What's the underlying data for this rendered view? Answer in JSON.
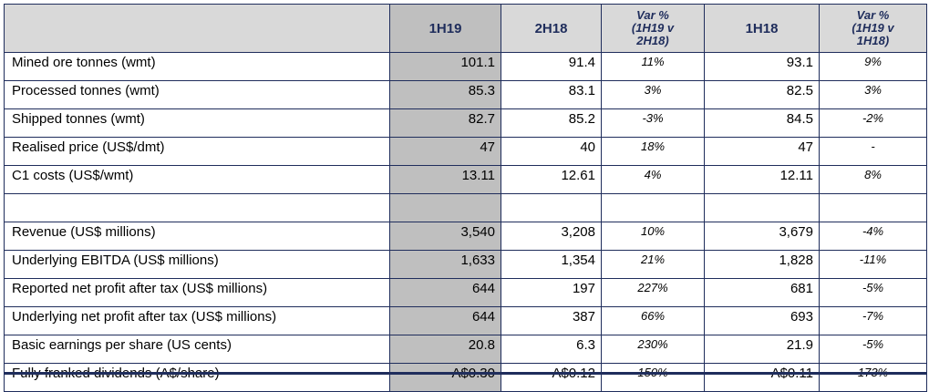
{
  "header": {
    "col1": "1H19",
    "col2": "2H18",
    "col3_line1": "Var %",
    "col3_line2": "(1H19 v",
    "col3_line3": "2H18)",
    "col4": "1H18",
    "col5_line1": "Var %",
    "col5_line2": "(1H19 v",
    "col5_line3": "1H18)"
  },
  "rows": [
    {
      "label": "Mined ore tonnes (wmt)",
      "h1_19": "101.1",
      "h2_18": "91.4",
      "var_2h18": "11%",
      "h1_18": "93.1",
      "var_1h18": "9%"
    },
    {
      "label": "Processed tonnes (wmt)",
      "h1_19": "85.3",
      "h2_18": "83.1",
      "var_2h18": "3%",
      "h1_18": "82.5",
      "var_1h18": "3%"
    },
    {
      "label": "Shipped tonnes (wmt)",
      "h1_19": "82.7",
      "h2_18": "85.2",
      "var_2h18": "-3%",
      "h1_18": "84.5",
      "var_1h18": "-2%"
    },
    {
      "label": "Realised price (US$/dmt)",
      "h1_19": "47",
      "h2_18": "40",
      "var_2h18": "18%",
      "h1_18": "47",
      "var_1h18": "-"
    },
    {
      "label": "C1 costs (US$/wmt)",
      "h1_19": "13.11",
      "h2_18": "12.61",
      "var_2h18": "4%",
      "h1_18": "12.11",
      "var_1h18": "8%"
    },
    {
      "label": "Revenue (US$ millions)",
      "h1_19": "3,540",
      "h2_18": "3,208",
      "var_2h18": "10%",
      "h1_18": "3,679",
      "var_1h18": "-4%"
    },
    {
      "label": "Underlying EBITDA (US$ millions)",
      "h1_19": "1,633",
      "h2_18": "1,354",
      "var_2h18": "21%",
      "h1_18": "1,828",
      "var_1h18": "-11%"
    },
    {
      "label": "Reported net profit after tax (US$ millions)",
      "h1_19": "644",
      "h2_18": "197",
      "var_2h18": "227%",
      "h1_18": "681",
      "var_1h18": "-5%"
    },
    {
      "label": "Underlying net profit after tax (US$ millions)",
      "h1_19": "644",
      "h2_18": "387",
      "var_2h18": "66%",
      "h1_18": "693",
      "var_1h18": "-7%"
    },
    {
      "label": "Basic earnings per share (US cents)",
      "h1_19": "20.8",
      "h2_18": "6.3",
      "var_2h18": "230%",
      "h1_18": "21.9",
      "var_1h18": "-5%"
    },
    {
      "label": "Fully franked dividends (A$/share)",
      "h1_19": "A$0.30",
      "h2_18": "A$0.12",
      "var_2h18": "150%",
      "h1_18": "A$0.11",
      "var_1h18": "173%"
    }
  ],
  "colors": {
    "border": "#1f2d5c",
    "header_bg": "#d9d9d9",
    "highlight_col": "#bfbfbf"
  }
}
